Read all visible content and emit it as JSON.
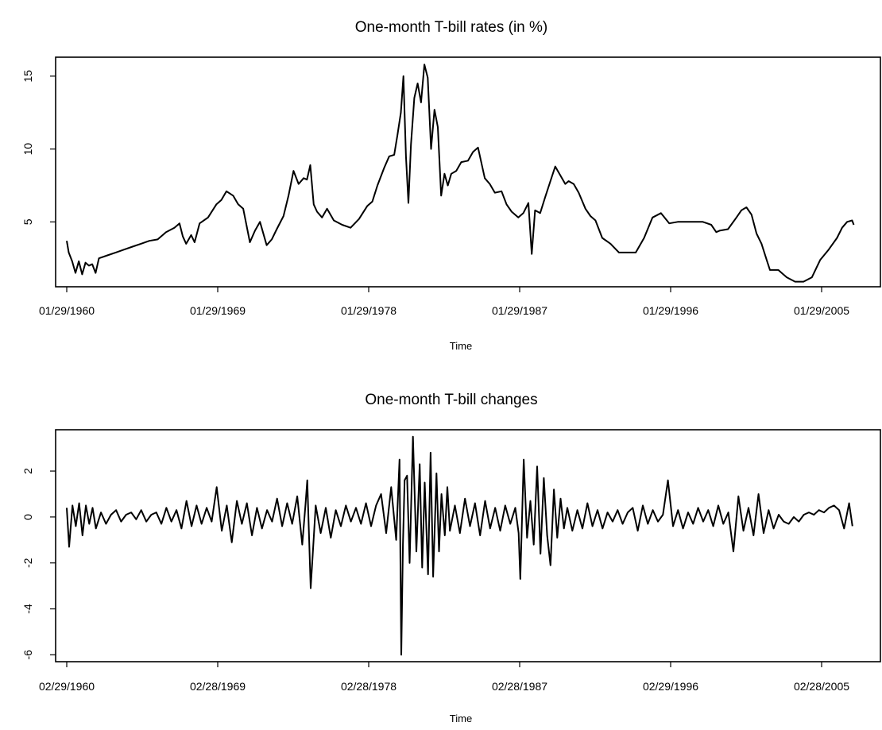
{
  "chart_data": [
    {
      "type": "line",
      "title": "One-month T-bill rates (in %)",
      "xlabel": "Time",
      "ylabel": "",
      "xlim": [
        1960.08,
        2007.5
      ],
      "ylim": [
        0.55,
        16.3
      ],
      "x_ticks": [
        {
          "value": 1960.08,
          "label": "01/29/1960"
        },
        {
          "value": 1969.08,
          "label": "01/29/1969"
        },
        {
          "value": 1978.08,
          "label": "01/29/1978"
        },
        {
          "value": 1987.08,
          "label": "01/29/1987"
        },
        {
          "value": 1996.08,
          "label": "01/29/1996"
        },
        {
          "value": 2005.08,
          "label": "01/29/2005"
        }
      ],
      "y_ticks": [
        5,
        10,
        15
      ],
      "y_tick_labels": [
        "5",
        "10",
        "15"
      ],
      "grid": false,
      "series": [
        {
          "x": [
            1960.08,
            1960.2,
            1960.4,
            1960.6,
            1960.8,
            1961.0,
            1961.2,
            1961.4,
            1961.6,
            1961.8,
            1962.0,
            1962.5,
            1963.0,
            1963.5,
            1964.0,
            1964.5,
            1965.0,
            1965.5,
            1966.0,
            1966.5,
            1966.8,
            1967.0,
            1967.2,
            1967.5,
            1967.7,
            1968.0,
            1968.5,
            1969.0,
            1969.3,
            1969.6,
            1970.0,
            1970.3,
            1970.6,
            1971.0,
            1971.3,
            1971.6,
            1972.0,
            1972.3,
            1972.6,
            1973.0,
            1973.3,
            1973.6,
            1973.9,
            1974.2,
            1974.4,
            1974.6,
            1974.8,
            1975.0,
            1975.3,
            1975.6,
            1976.0,
            1976.5,
            1977.0,
            1977.5,
            1978.0,
            1978.3,
            1978.6,
            1979.0,
            1979.3,
            1979.6,
            1979.8,
            1980.0,
            1980.15,
            1980.3,
            1980.45,
            1980.6,
            1980.8,
            1981.0,
            1981.2,
            1981.4,
            1981.6,
            1981.8,
            1982.0,
            1982.2,
            1982.4,
            1982.6,
            1982.8,
            1983.0,
            1983.3,
            1983.6,
            1984.0,
            1984.3,
            1984.6,
            1985.0,
            1985.3,
            1985.6,
            1986.0,
            1986.3,
            1986.6,
            1987.0,
            1987.3,
            1987.6,
            1987.8,
            1988.0,
            1988.3,
            1988.6,
            1989.0,
            1989.2,
            1989.5,
            1989.8,
            1990.0,
            1990.3,
            1990.6,
            1991.0,
            1991.3,
            1991.6,
            1992.0,
            1992.5,
            1993.0,
            1993.5,
            1994.0,
            1994.5,
            1995.0,
            1995.5,
            1996.0,
            1996.5,
            1997.0,
            1997.5,
            1998.0,
            1998.5,
            1998.8,
            1999.0,
            1999.5,
            2000.0,
            2000.3,
            2000.6,
            2000.9,
            2001.2,
            2001.5,
            2001.8,
            2002.0,
            2002.5,
            2003.0,
            2003.5,
            2004.0,
            2004.5,
            2005.0,
            2005.5,
            2006.0,
            2006.3,
            2006.6,
            2006.9,
            2007.0
          ],
          "y": [
            3.7,
            2.9,
            2.3,
            1.5,
            2.3,
            1.4,
            2.2,
            2.0,
            2.1,
            1.5,
            2.5,
            2.7,
            2.9,
            3.1,
            3.3,
            3.5,
            3.7,
            3.8,
            4.3,
            4.6,
            4.9,
            4.0,
            3.5,
            4.1,
            3.6,
            4.9,
            5.3,
            6.2,
            6.5,
            7.1,
            6.8,
            6.2,
            5.9,
            3.6,
            4.4,
            5.0,
            3.4,
            3.8,
            4.5,
            5.4,
            6.8,
            8.5,
            7.6,
            8.0,
            7.9,
            8.9,
            6.2,
            5.7,
            5.3,
            5.9,
            5.1,
            4.8,
            4.6,
            5.2,
            6.1,
            6.4,
            7.5,
            8.7,
            9.5,
            9.6,
            11.0,
            12.5,
            15.0,
            9.5,
            6.3,
            10.3,
            13.5,
            14.5,
            13.2,
            15.8,
            14.9,
            10.0,
            12.7,
            11.5,
            6.8,
            8.3,
            7.5,
            8.3,
            8.5,
            9.1,
            9.2,
            9.8,
            10.1,
            8.0,
            7.6,
            7.0,
            7.1,
            6.2,
            5.7,
            5.3,
            5.6,
            6.3,
            2.8,
            5.8,
            5.6,
            6.7,
            8.1,
            8.8,
            8.2,
            7.6,
            7.8,
            7.6,
            7.0,
            5.9,
            5.4,
            5.1,
            3.9,
            3.5,
            2.9,
            2.9,
            2.9,
            3.9,
            5.3,
            5.6,
            4.9,
            5.0,
            5.0,
            5.0,
            5.0,
            4.8,
            4.3,
            4.4,
            4.5,
            5.3,
            5.8,
            6.0,
            5.5,
            4.2,
            3.5,
            2.4,
            1.7,
            1.7,
            1.2,
            0.9,
            0.9,
            1.2,
            2.4,
            3.1,
            3.9,
            4.6,
            5.0,
            5.1,
            4.8
          ]
        }
      ]
    },
    {
      "type": "line",
      "title": "One-month T-bill changes",
      "xlabel": "Time",
      "ylabel": "",
      "xlim": [
        1960.16,
        2007.5
      ],
      "ylim": [
        -6.3,
        3.8
      ],
      "x_ticks": [
        {
          "value": 1960.16,
          "label": "02/29/1960"
        },
        {
          "value": 1969.16,
          "label": "02/28/1969"
        },
        {
          "value": 1978.16,
          "label": "02/28/1978"
        },
        {
          "value": 1987.16,
          "label": "02/28/1987"
        },
        {
          "value": 1996.16,
          "label": "02/29/1996"
        },
        {
          "value": 2005.16,
          "label": "02/28/2005"
        }
      ],
      "y_ticks": [
        -6,
        -4,
        -2,
        0,
        2
      ],
      "y_tick_labels": [
        "-6",
        "-4",
        "-2",
        "0",
        "2"
      ],
      "grid": false,
      "series": [
        {
          "x": [
            1960.16,
            1960.3,
            1960.5,
            1960.7,
            1960.9,
            1961.1,
            1961.3,
            1961.5,
            1961.7,
            1961.9,
            1962.2,
            1962.5,
            1962.8,
            1963.1,
            1963.4,
            1963.7,
            1964.0,
            1964.3,
            1964.6,
            1964.9,
            1965.2,
            1965.5,
            1965.8,
            1966.1,
            1966.4,
            1966.7,
            1967.0,
            1967.3,
            1967.6,
            1967.9,
            1968.2,
            1968.5,
            1968.8,
            1969.1,
            1969.4,
            1969.7,
            1970.0,
            1970.3,
            1970.6,
            1970.9,
            1971.2,
            1971.5,
            1971.8,
            1972.1,
            1972.4,
            1972.7,
            1973.0,
            1973.3,
            1973.6,
            1973.9,
            1974.2,
            1974.4,
            1974.5,
            1974.7,
            1975.0,
            1975.3,
            1975.6,
            1975.9,
            1976.2,
            1976.5,
            1976.8,
            1977.1,
            1977.4,
            1977.7,
            1978.0,
            1978.3,
            1978.6,
            1978.9,
            1979.2,
            1979.5,
            1979.8,
            1980.0,
            1980.1,
            1980.2,
            1980.3,
            1980.45,
            1980.6,
            1980.8,
            1981.0,
            1981.2,
            1981.35,
            1981.5,
            1981.7,
            1981.85,
            1982.0,
            1982.2,
            1982.35,
            1982.5,
            1982.7,
            1982.85,
            1983.0,
            1983.3,
            1983.6,
            1983.9,
            1984.2,
            1984.5,
            1984.8,
            1985.1,
            1985.4,
            1985.7,
            1986.0,
            1986.3,
            1986.6,
            1986.9,
            1987.1,
            1987.2,
            1987.4,
            1987.6,
            1987.8,
            1988.0,
            1988.2,
            1988.4,
            1988.6,
            1988.8,
            1989.0,
            1989.2,
            1989.4,
            1989.6,
            1989.8,
            1990.0,
            1990.3,
            1990.6,
            1990.9,
            1991.2,
            1991.5,
            1991.8,
            1992.1,
            1992.4,
            1992.7,
            1993.0,
            1993.3,
            1993.6,
            1993.9,
            1994.2,
            1994.5,
            1994.8,
            1995.1,
            1995.4,
            1995.7,
            1996.0,
            1996.3,
            1996.6,
            1996.9,
            1997.2,
            1997.5,
            1997.8,
            1998.1,
            1998.4,
            1998.7,
            1999.0,
            1999.3,
            1999.6,
            1999.9,
            2000.2,
            2000.5,
            2000.8,
            2001.1,
            2001.4,
            2001.7,
            2002.0,
            2002.3,
            2002.6,
            2002.9,
            2003.2,
            2003.5,
            2003.8,
            2004.1,
            2004.4,
            2004.7,
            2005.0,
            2005.3,
            2005.6,
            2005.9,
            2006.2,
            2006.5,
            2006.8,
            2007.0
          ],
          "y": [
            0.4,
            -1.3,
            0.5,
            -0.4,
            0.6,
            -0.8,
            0.5,
            -0.3,
            0.4,
            -0.5,
            0.2,
            -0.3,
            0.1,
            0.3,
            -0.2,
            0.1,
            0.2,
            -0.1,
            0.3,
            -0.2,
            0.1,
            0.2,
            -0.3,
            0.4,
            -0.2,
            0.3,
            -0.5,
            0.7,
            -0.4,
            0.5,
            -0.3,
            0.4,
            -0.2,
            1.3,
            -0.6,
            0.5,
            -1.1,
            0.7,
            -0.3,
            0.6,
            -0.8,
            0.4,
            -0.5,
            0.3,
            -0.2,
            0.8,
            -0.4,
            0.6,
            -0.3,
            0.9,
            -1.2,
            0.6,
            1.6,
            -3.1,
            0.5,
            -0.7,
            0.4,
            -0.9,
            0.3,
            -0.4,
            0.5,
            -0.2,
            0.4,
            -0.3,
            0.6,
            -0.4,
            0.5,
            1.0,
            -0.7,
            1.3,
            -1.0,
            2.5,
            -6.0,
            -1.2,
            1.6,
            1.8,
            -2.0,
            3.5,
            -1.5,
            2.3,
            -2.2,
            1.5,
            -2.5,
            2.8,
            -2.6,
            1.9,
            -1.5,
            1.0,
            -0.8,
            1.3,
            -0.6,
            0.5,
            -0.7,
            0.8,
            -0.4,
            0.6,
            -0.8,
            0.7,
            -0.5,
            0.4,
            -0.6,
            0.5,
            -0.3,
            0.4,
            -0.7,
            -2.7,
            2.5,
            -0.9,
            0.7,
            -1.2,
            2.2,
            -1.6,
            1.7,
            -0.8,
            -2.1,
            1.2,
            -0.9,
            0.8,
            -0.5,
            0.4,
            -0.6,
            0.3,
            -0.5,
            0.6,
            -0.4,
            0.3,
            -0.5,
            0.2,
            -0.2,
            0.3,
            -0.3,
            0.2,
            0.4,
            -0.6,
            0.5,
            -0.3,
            0.3,
            -0.2,
            0.1,
            1.6,
            -0.4,
            0.3,
            -0.5,
            0.2,
            -0.3,
            0.4,
            -0.2,
            0.3,
            -0.4,
            0.5,
            -0.3,
            0.2,
            -1.5,
            0.9,
            -0.6,
            0.4,
            -0.8,
            1.0,
            -0.7,
            0.3,
            -0.5,
            0.1,
            -0.2,
            -0.3,
            0.0,
            -0.2,
            0.1,
            0.2,
            0.1,
            0.3,
            0.2,
            0.4,
            0.5,
            0.3,
            -0.5,
            0.6,
            -0.4
          ]
        }
      ]
    }
  ]
}
